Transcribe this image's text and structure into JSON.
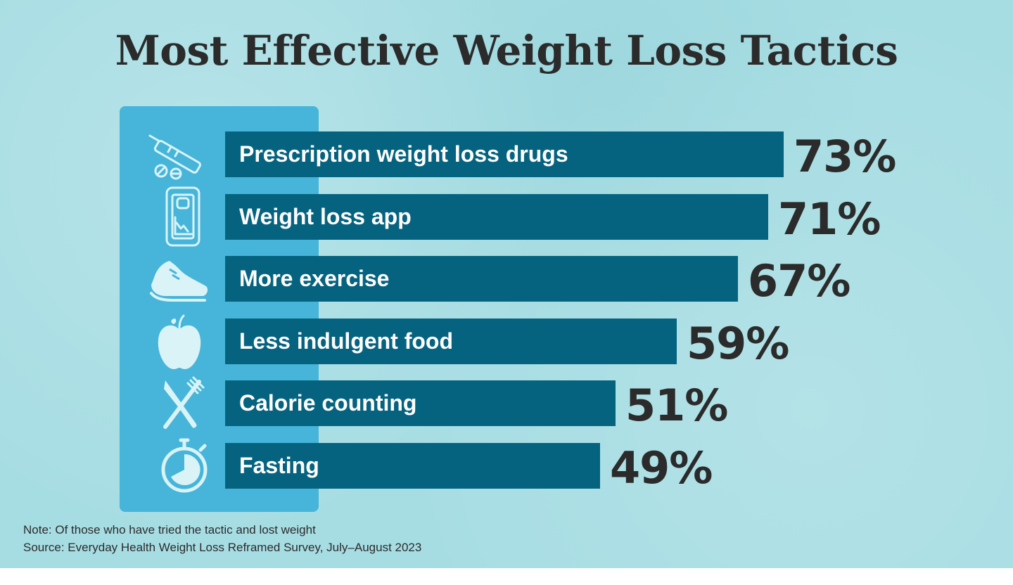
{
  "colors": {
    "background": "#a6dde3",
    "panel": "#46b5d9",
    "bar": "#06637f",
    "bar_text": "#ffffff",
    "value_text": "#2b2b2b",
    "icon": "#d9f3f6"
  },
  "chart_data": {
    "type": "bar",
    "orientation": "horizontal",
    "title": "Most Effective Weight Loss Tactics",
    "categories": [
      "Prescription weight loss drugs",
      "Weight loss app",
      "More exercise",
      "Less indulgent food",
      "Calorie counting",
      "Fasting"
    ],
    "values": [
      73,
      71,
      67,
      59,
      51,
      49
    ],
    "value_labels": [
      "73%",
      "71%",
      "67%",
      "59%",
      "51%",
      "49%"
    ],
    "icons": [
      "syringe-pills-icon",
      "phone-scale-icon",
      "sneaker-icon",
      "apple-icon",
      "knife-fork-icon",
      "stopwatch-icon"
    ],
    "xlim": [
      0,
      100
    ],
    "unit": "%",
    "grid": false
  },
  "footnote": {
    "note": "Note: Of those who have tried the tactic and lost weight",
    "source": "Source: Everyday Health Weight Loss Reframed Survey, July–August 2023"
  }
}
